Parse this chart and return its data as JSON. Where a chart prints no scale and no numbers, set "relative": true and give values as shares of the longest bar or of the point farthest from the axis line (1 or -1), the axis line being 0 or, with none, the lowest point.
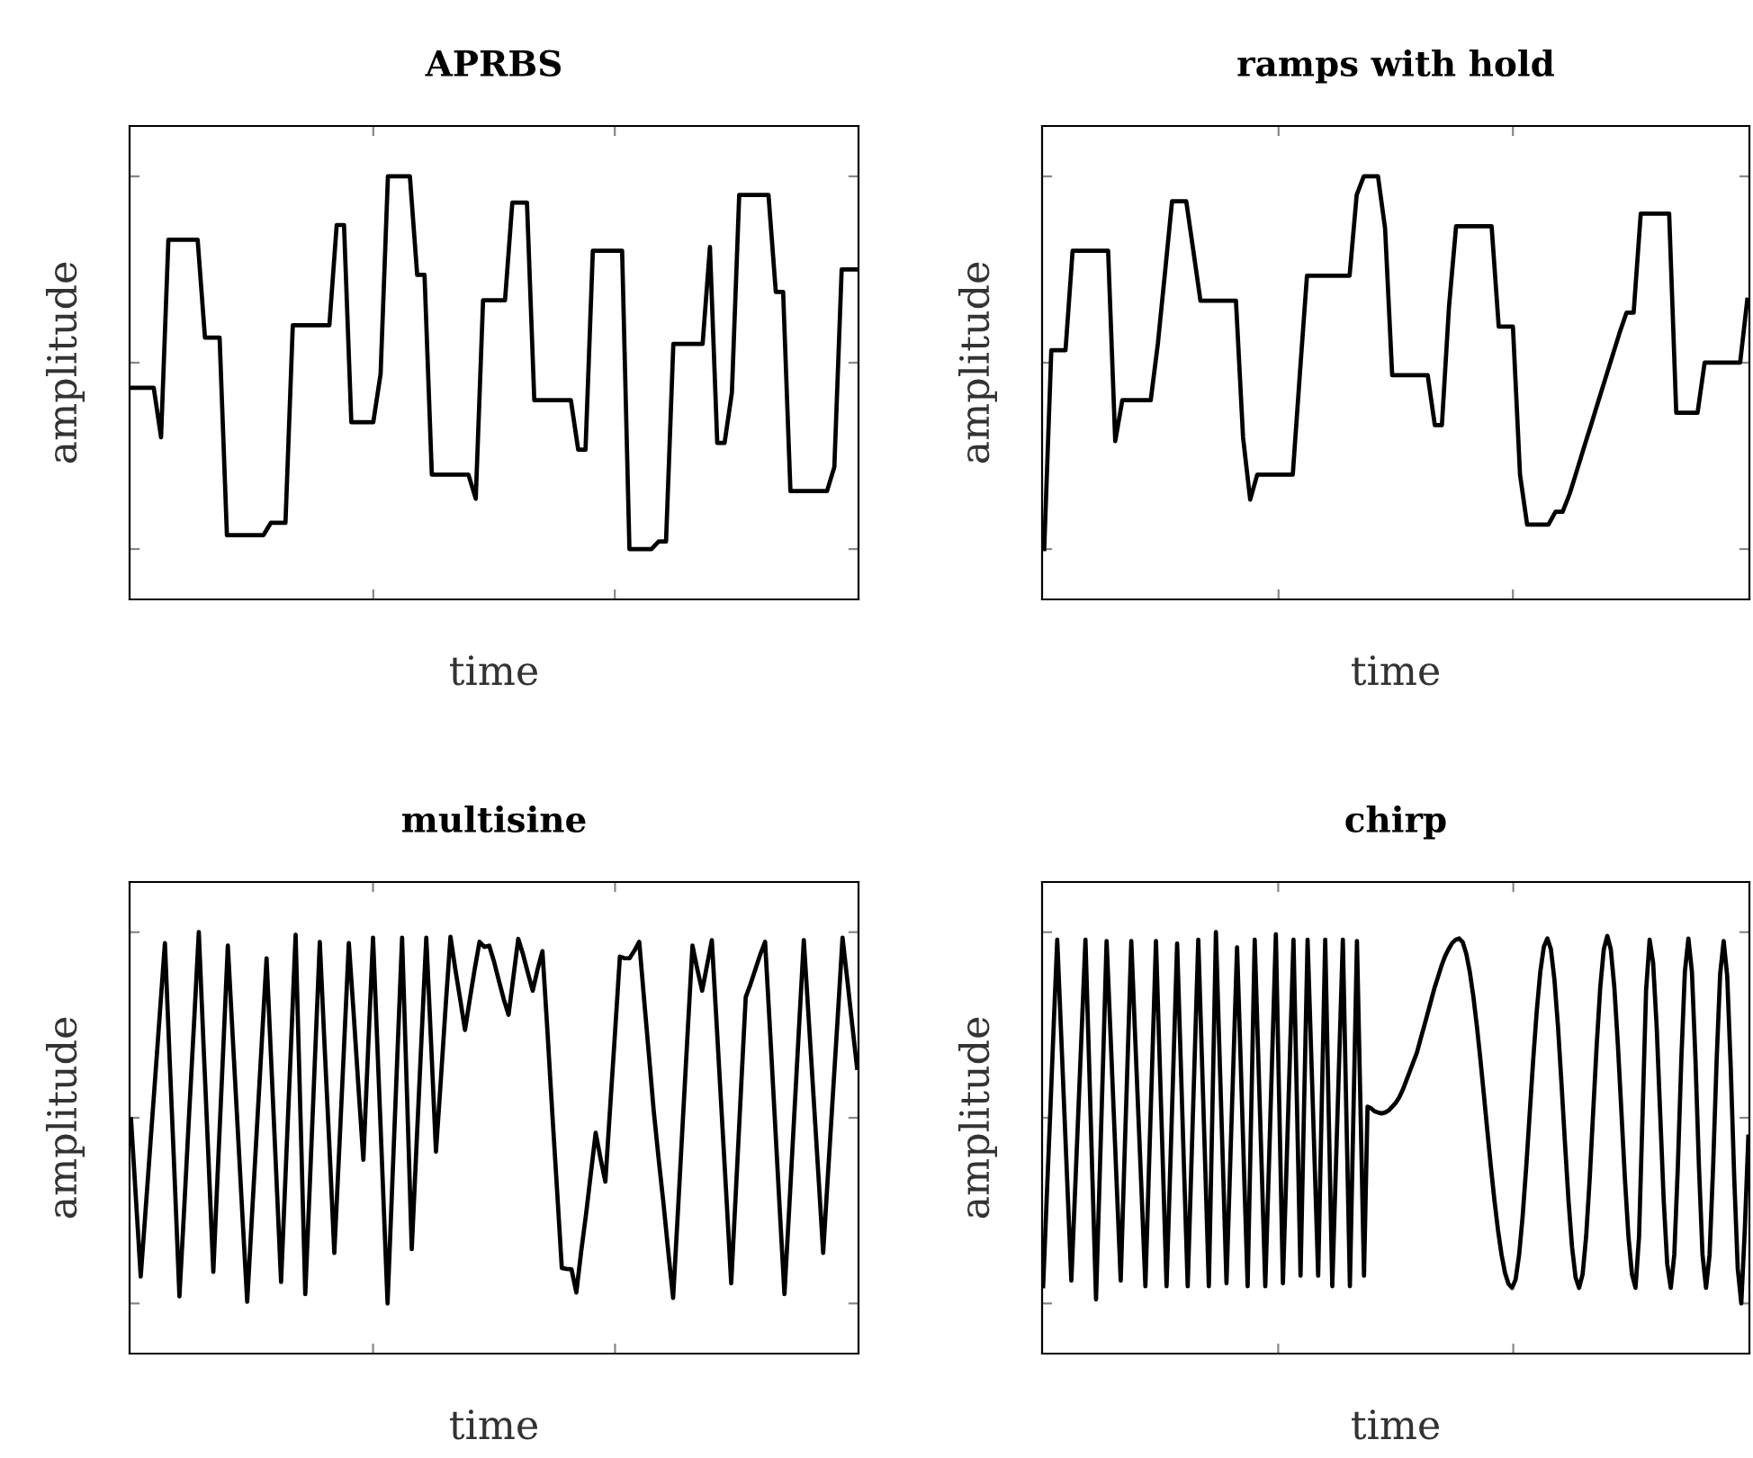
{
  "chart_data": [
    {
      "type": "line",
      "title": "APRBS",
      "xlabel": "time",
      "ylabel": "amplitude",
      "relative": true,
      "tick_labels": false,
      "categories": [
        null,
        null,
        null,
        null,
        null,
        null,
        null,
        null,
        null,
        null,
        null,
        null,
        null,
        null,
        null,
        null,
        null,
        null,
        null,
        null,
        null,
        null,
        null,
        null,
        null,
        null,
        null,
        null,
        null,
        null,
        null,
        null,
        null,
        null,
        null,
        null,
        null,
        null,
        null,
        null,
        null,
        null,
        null,
        null,
        null,
        null,
        null,
        null,
        null,
        null,
        null,
        null,
        null,
        null,
        null,
        null,
        null,
        null,
        null,
        null,
        null,
        null,
        null,
        null,
        null,
        null,
        null,
        null,
        null,
        null,
        null,
        null,
        null,
        null,
        null,
        null,
        null,
        null,
        null,
        null,
        null,
        null,
        null,
        null,
        null,
        null,
        null,
        null,
        null,
        null,
        null,
        null,
        null,
        null,
        null,
        null,
        null,
        null,
        null,
        null
      ],
      "series": [
        {
          "color": "#000000",
          "values": [
            0.5,
            0.5,
            0.5,
            0.5,
            0.383,
            0.85,
            0.85,
            0.85,
            0.85,
            0.85,
            0.619,
            0.619,
            0.619,
            0.152,
            0.152,
            0.152,
            0.152,
            0.152,
            0.152,
            0.181,
            0.181,
            0.181,
            0.648,
            0.648,
            0.648,
            0.648,
            0.648,
            0.648,
            0.885,
            0.885,
            0.419,
            0.419,
            0.419,
            0.419,
            0.533,
            1.0,
            1.0,
            1.0,
            1.0,
            0.767,
            0.767,
            0.295,
            0.295,
            0.295,
            0.295,
            0.295,
            0.295,
            0.238,
            0.707,
            0.707,
            0.707,
            0.707,
            0.938,
            0.938,
            0.938,
            0.471,
            0.471,
            0.471,
            0.471,
            0.471,
            0.471,
            0.354,
            0.354,
            0.824,
            0.824,
            0.824,
            0.824,
            0.824,
            0.119,
            0.119,
            0.119,
            0.119,
            0.137,
            0.137,
            0.604,
            0.604,
            0.604,
            0.604,
            0.604,
            0.833,
            0.37,
            0.37,
            0.489,
            0.956,
            0.956,
            0.956,
            0.956,
            0.956,
            0.727,
            0.727,
            0.256,
            0.256,
            0.256,
            0.256,
            0.256,
            0.256,
            0.313,
            0.78,
            0.78,
            0.78
          ]
        }
      ]
    },
    {
      "type": "line",
      "title": "ramps with hold",
      "xlabel": "time",
      "ylabel": "amplitude",
      "relative": true,
      "tick_labels": false,
      "categories": [
        null,
        null,
        null,
        null,
        null,
        null,
        null,
        null,
        null,
        null,
        null,
        null,
        null,
        null,
        null,
        null,
        null,
        null,
        null,
        null,
        null,
        null,
        null,
        null,
        null,
        null,
        null,
        null,
        null,
        null,
        null,
        null,
        null,
        null,
        null,
        null,
        null,
        null,
        null,
        null,
        null,
        null,
        null,
        null,
        null,
        null,
        null,
        null,
        null,
        null,
        null,
        null,
        null,
        null,
        null,
        null,
        null,
        null,
        null,
        null,
        null,
        null,
        null,
        null,
        null,
        null,
        null,
        null,
        null,
        null,
        null,
        null,
        null,
        null,
        null,
        null,
        null,
        null,
        null,
        null,
        null,
        null,
        null,
        null,
        null,
        null,
        null,
        null,
        null,
        null,
        null,
        null,
        null,
        null,
        null,
        null,
        null,
        null,
        null,
        null
      ],
      "series": [
        {
          "color": "#000000",
          "values": [
            0.119,
            0.589,
            0.589,
            0.589,
            0.824,
            0.824,
            0.824,
            0.824,
            0.824,
            0.824,
            0.374,
            0.471,
            0.471,
            0.471,
            0.471,
            0.471,
            0.604,
            0.771,
            0.941,
            0.941,
            0.941,
            0.824,
            0.706,
            0.706,
            0.706,
            0.706,
            0.706,
            0.706,
            0.383,
            0.236,
            0.295,
            0.295,
            0.295,
            0.295,
            0.295,
            0.295,
            0.533,
            0.765,
            0.765,
            0.765,
            0.765,
            0.765,
            0.765,
            0.765,
            0.956,
            1.0,
            1.0,
            1.0,
            0.877,
            0.53,
            0.53,
            0.53,
            0.53,
            0.53,
            0.53,
            0.412,
            0.412,
            0.692,
            0.882,
            0.882,
            0.882,
            0.882,
            0.882,
            0.882,
            0.645,
            0.645,
            0.645,
            0.295,
            0.177,
            0.177,
            0.177,
            0.177,
            0.207,
            0.207,
            0.25,
            0.304,
            0.359,
            0.412,
            0.467,
            0.521,
            0.575,
            0.629,
            0.678,
            0.678,
            0.912,
            0.912,
            0.912,
            0.912,
            0.912,
            0.441,
            0.441,
            0.441,
            0.441,
            0.56,
            0.56,
            0.56,
            0.56,
            0.56,
            0.56,
            0.708
          ]
        }
      ]
    },
    {
      "type": "line",
      "title": "multisine",
      "xlabel": "time",
      "ylabel": "amplitude",
      "relative": true,
      "tick_labels": false,
      "categories": [
        null,
        null,
        null,
        null,
        null,
        null,
        null,
        null,
        null,
        null,
        null,
        null,
        null,
        null,
        null,
        null,
        null,
        null,
        null,
        null,
        null,
        null,
        null,
        null,
        null,
        null,
        null,
        null,
        null,
        null,
        null,
        null,
        null,
        null,
        null,
        null,
        null,
        null,
        null,
        null,
        null,
        null,
        null,
        null,
        null,
        null,
        null,
        null,
        null,
        null,
        null,
        null,
        null,
        null,
        null,
        null,
        null,
        null,
        null,
        null,
        null,
        null,
        null,
        null,
        null,
        null,
        null,
        null,
        null,
        null,
        null,
        null,
        null,
        null,
        null,
        null,
        null,
        null,
        null,
        null,
        null,
        null,
        null,
        null,
        null,
        null,
        null,
        null,
        null,
        null,
        null,
        null,
        null,
        null,
        null,
        null,
        null,
        null,
        null,
        null,
        null,
        null,
        null,
        null,
        null,
        null,
        null,
        null,
        null,
        null,
        null,
        null,
        null,
        null,
        null,
        null,
        null,
        null,
        null,
        null,
        null,
        null,
        null,
        null,
        null,
        null,
        null,
        null,
        null,
        null,
        null,
        null,
        null,
        null,
        null,
        null,
        null,
        null,
        null,
        null,
        null,
        null,
        null,
        null,
        null,
        null,
        null,
        null,
        null,
        null,
        null
      ],
      "series": [
        {
          "color": "#000000",
          "values": [
            0.556,
            0.37,
            0.183,
            0.339,
            0.498,
            0.656,
            0.815,
            0.974,
            0.692,
            0.419,
            0.136,
            0.348,
            0.568,
            0.78,
            1.0,
            0.727,
            0.463,
            0.194,
            0.454,
            0.709,
            0.968,
            0.753,
            0.542,
            0.33,
            0.123,
            0.33,
            0.533,
            0.736,
            0.938,
            0.683,
            0.427,
            0.17,
            0.445,
            0.718,
            0.994,
            0.568,
            0.141,
            0.419,
            0.7,
            0.977,
            0.727,
            0.489,
            0.239,
            0.48,
            0.727,
            0.974,
            0.806,
            0.63,
            0.46,
            0.727,
            0.987,
            0.7,
            0.41,
            0.119,
            0.41,
            0.7,
            0.987,
            0.621,
            0.248,
            0.498,
            0.744,
            0.987,
            0.736,
            0.479,
            0.648,
            0.824,
            0.989,
            0.912,
            0.841,
            0.768,
            0.841,
            0.912,
            0.977,
            0.965,
            0.968,
            0.93,
            0.885,
            0.841,
            0.804,
            0.894,
            0.984,
            0.947,
            0.903,
            0.861,
            0.912,
            0.955,
            0.771,
            0.577,
            0.392,
            0.203,
            0.201,
            0.2,
            0.145,
            0.242,
            0.33,
            0.427,
            0.524,
            0.463,
            0.408,
            0.586,
            0.762,
            0.942,
            0.938,
            0.938,
            0.956,
            0.977,
            0.841,
            0.709,
            0.575,
            0.463,
            0.357,
            0.242,
            0.132,
            0.339,
            0.551,
            0.762,
            0.968,
            0.912,
            0.861,
            0.921,
            0.981,
            0.78,
            0.577,
            0.374,
            0.167,
            0.392,
            0.621,
            0.846,
            0.877,
            0.912,
            0.947,
            0.977,
            0.771,
            0.56,
            0.348,
            0.141,
            0.348,
            0.56,
            0.771,
            0.981,
            0.797,
            0.612,
            0.427,
            0.239,
            0.427,
            0.612,
            0.797,
            0.987,
            0.885,
            0.78,
            0.678
          ]
        }
      ]
    },
    {
      "type": "line",
      "title": "chirp",
      "xlabel": "time",
      "ylabel": "amplitude",
      "relative": true,
      "tick_labels": false,
      "categories": [
        null,
        null,
        null,
        null,
        null,
        null,
        null,
        null,
        null,
        null,
        null,
        null,
        null,
        null,
        null,
        null,
        null,
        null,
        null,
        null,
        null,
        null,
        null,
        null,
        null,
        null,
        null,
        null,
        null,
        null,
        null,
        null,
        null,
        null,
        null,
        null,
        null,
        null,
        null,
        null,
        null,
        null,
        null,
        null,
        null,
        null,
        null,
        null,
        null,
        null,
        null,
        null,
        null,
        null,
        null,
        null,
        null,
        null,
        null,
        null,
        null,
        null,
        null,
        null,
        null,
        null,
        null,
        null,
        null,
        null,
        null,
        null,
        null,
        null,
        null,
        null,
        null,
        null,
        null,
        null,
        null,
        null,
        null,
        null,
        null,
        null,
        null,
        null,
        null,
        null,
        null,
        null,
        null,
        null,
        null,
        null,
        null,
        null,
        null,
        null,
        null,
        null,
        null,
        null,
        null,
        null,
        null,
        null,
        null,
        null,
        null,
        null,
        null,
        null,
        null,
        null,
        null,
        null,
        null,
        null,
        null,
        null,
        null,
        null,
        null,
        null,
        null,
        null,
        null,
        null,
        null,
        null,
        null,
        null,
        null,
        null,
        null,
        null,
        null,
        null,
        null,
        null,
        null,
        null,
        null,
        null,
        null,
        null,
        null,
        null,
        null,
        null,
        null,
        null,
        null,
        null,
        null,
        null,
        null,
        null,
        null,
        null,
        null,
        null,
        null,
        null,
        null,
        null,
        null,
        null,
        null,
        null,
        null,
        null,
        null,
        null,
        null,
        null,
        null,
        null,
        null,
        null,
        null,
        null,
        null,
        null,
        null,
        null,
        null,
        null,
        null,
        null,
        null,
        null,
        null,
        null,
        null,
        null,
        null,
        null,
        null
      ],
      "series": [
        {
          "color": "#000000",
          "values": [
            0.16,
            0.366,
            0.568,
            0.78,
            0.982,
            0.78,
            0.577,
            0.374,
            0.173,
            0.374,
            0.577,
            0.78,
            0.982,
            0.7,
            0.41,
            0.129,
            0.41,
            0.692,
            0.979,
            0.78,
            0.577,
            0.374,
            0.173,
            0.445,
            0.709,
            0.979,
            0.771,
            0.568,
            0.366,
            0.16,
            0.436,
            0.709,
            0.979,
            0.709,
            0.436,
            0.16,
            0.427,
            0.7,
            0.973,
            0.7,
            0.427,
            0.16,
            0.436,
            0.709,
            0.982,
            0.709,
            0.436,
            0.16,
            0.577,
            1.0,
            0.718,
            0.445,
            0.167,
            0.436,
            0.7,
            0.964,
            0.7,
            0.427,
            0.16,
            0.568,
            0.982,
            0.709,
            0.436,
            0.16,
            0.436,
            0.718,
            0.995,
            0.577,
            0.167,
            0.436,
            0.709,
            0.982,
            0.586,
            0.185,
            0.586,
            0.982,
            0.718,
            0.454,
            0.185,
            0.586,
            0.982,
            0.568,
            0.16,
            0.436,
            0.709,
            0.982,
            0.568,
            0.16,
            0.568,
            0.979,
            0.586,
            0.185,
            0.586,
            0.582,
            0.575,
            0.572,
            0.57,
            0.572,
            0.577,
            0.586,
            0.595,
            0.608,
            0.626,
            0.648,
            0.67,
            0.692,
            0.714,
            0.745,
            0.775,
            0.806,
            0.837,
            0.868,
            0.894,
            0.921,
            0.943,
            0.96,
            0.974,
            0.982,
            0.985,
            0.976,
            0.949,
            0.906,
            0.848,
            0.778,
            0.699,
            0.614,
            0.527,
            0.442,
            0.363,
            0.293,
            0.235,
            0.191,
            0.165,
            0.156,
            0.176,
            0.235,
            0.327,
            0.442,
            0.571,
            0.699,
            0.814,
            0.906,
            0.965,
            0.985,
            0.96,
            0.888,
            0.778,
            0.642,
            0.499,
            0.363,
            0.253,
            0.181,
            0.156,
            0.188,
            0.278,
            0.414,
            0.574,
            0.733,
            0.869,
            0.959,
            0.991,
            0.959,
            0.869,
            0.733,
            0.574,
            0.414,
            0.278,
            0.188,
            0.156,
            0.277,
            0.569,
            0.862,
            0.982,
            0.927,
            0.776,
            0.569,
            0.363,
            0.212,
            0.156,
            0.235,
            0.442,
            0.699,
            0.906,
            0.985,
            0.906,
            0.699,
            0.442,
            0.235,
            0.156,
            0.234,
            0.441,
            0.694,
            0.9,
            0.979,
            0.897,
            0.682,
            0.416,
            0.201,
            0.119,
            0.295,
            0.515
          ]
        }
      ]
    }
  ]
}
